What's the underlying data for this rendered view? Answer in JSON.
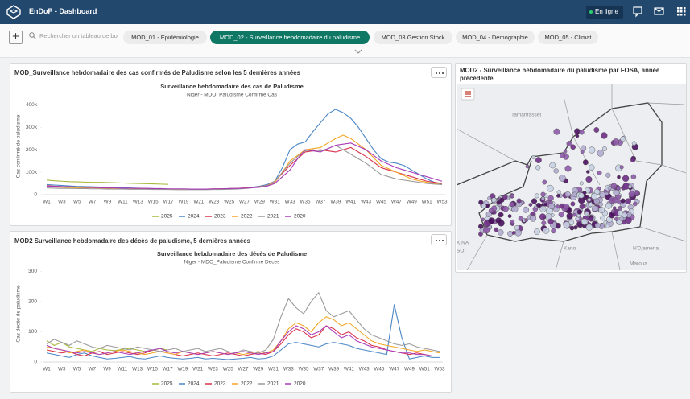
{
  "header": {
    "title": "EnDoP - Dashboard",
    "status": "En ligne"
  },
  "search": {
    "placeholder": "Rechercher un tableau de bo"
  },
  "tabs": [
    "MOD_01 - Epidémiologie",
    "MOD_02 - Surveillance hebdomadaire du paludisme",
    "MOD_03 Gestion Stock",
    "MOD_04 - Démographie",
    "MOD_05 - Climat"
  ],
  "panels": [
    "MOD_Surveillance hebdomadaire des cas confirmés de Paludisme selon les 5 dernières années",
    "MOD2 Surveillance hebdomadaire des décès de paludisme, 5 dernières années",
    "MOD2 - Surveillance hebdomadaire du paludisme par FOSA, année précédente"
  ],
  "map": {
    "labels": [
      "Tamanrasset",
      "Kano",
      "N'Djamena",
      "Maroua",
      "KINA",
      "SO"
    ]
  },
  "chart_data": [
    {
      "type": "line",
      "title": "Surveillance hebdomadaire des cas de Paludisme",
      "subtitle": "Niger - MDO_Paludisme Confirme Cas",
      "y_label": "Cas confirmé de paludisme",
      "categories": [
        "W1",
        null,
        "W3",
        null,
        "W5",
        null,
        "W7",
        null,
        "W9",
        null,
        "W11",
        null,
        "W13",
        null,
        "W15",
        null,
        "W17",
        null,
        "W19",
        null,
        "W21",
        null,
        "W23",
        null,
        "W25",
        null,
        "W27",
        null,
        "W29",
        null,
        "W31",
        null,
        "W33",
        null,
        "W35",
        null,
        "W37",
        null,
        "W39",
        null,
        "W41",
        null,
        "W43",
        null,
        "W45",
        null,
        "W47",
        null,
        "W49",
        null,
        "W51",
        null,
        "W53"
      ],
      "ylim": [
        0,
        430000
      ],
      "yticks": [
        0,
        {
          "value": 100000,
          "label": "100k"
        },
        {
          "value": 200000,
          "label": "200k"
        },
        {
          "value": 300000,
          "label": "300k"
        },
        {
          "value": 400000,
          "label": "400k"
        }
      ],
      "grid": false,
      "series": [
        {
          "name": "2025",
          "color": "#a9b83a",
          "values": [
            65000,
            62000,
            60000,
            58000,
            57000,
            56000,
            55000,
            55000,
            54000,
            53000,
            52000,
            51000,
            50000,
            49000,
            48000,
            47000,
            46000,
            null,
            null,
            null,
            null,
            null,
            null,
            null,
            null,
            null,
            null,
            null,
            null,
            null,
            null,
            null,
            null,
            null,
            null,
            null,
            null,
            null,
            null,
            null,
            null,
            null,
            null,
            null,
            null,
            null,
            null,
            null,
            null,
            null,
            null,
            null,
            null
          ]
        },
        {
          "name": "2024",
          "color": "#4a86c5",
          "values": [
            45000,
            43000,
            41000,
            39000,
            37000,
            36000,
            35000,
            34000,
            33000,
            32000,
            31000,
            30000,
            29000,
            28000,
            27000,
            26000,
            25000,
            25000,
            24000,
            24000,
            24000,
            25000,
            25000,
            26000,
            27000,
            28000,
            30000,
            33000,
            38000,
            45000,
            60000,
            120000,
            200000,
            225000,
            235000,
            280000,
            320000,
            360000,
            380000,
            365000,
            340000,
            300000,
            250000,
            200000,
            160000,
            145000,
            140000,
            130000,
            110000,
            90000,
            70000,
            55000,
            45000
          ]
        },
        {
          "name": "2023",
          "color": "#d9304a",
          "values": [
            40000,
            38000,
            36000,
            35000,
            34000,
            33000,
            32000,
            31000,
            30000,
            29000,
            28000,
            28000,
            27000,
            27000,
            26000,
            26000,
            25000,
            25000,
            25000,
            25000,
            25000,
            25000,
            26000,
            26000,
            27000,
            28000,
            30000,
            32000,
            36000,
            42000,
            60000,
            95000,
            130000,
            160000,
            190000,
            195000,
            200000,
            195000,
            190000,
            200000,
            210000,
            190000,
            170000,
            145000,
            120000,
            110000,
            100000,
            90000,
            80000,
            70000,
            60000,
            55000,
            50000
          ]
        },
        {
          "name": "2022",
          "color": "#f5a623",
          "values": [
            35000,
            34000,
            33000,
            32000,
            31000,
            30000,
            30000,
            29000,
            29000,
            28000,
            28000,
            27000,
            27000,
            26000,
            26000,
            25000,
            25000,
            25000,
            24000,
            24000,
            24000,
            24000,
            25000,
            25000,
            26000,
            27000,
            29000,
            31000,
            34000,
            40000,
            55000,
            100000,
            150000,
            175000,
            200000,
            205000,
            210000,
            230000,
            250000,
            265000,
            250000,
            225000,
            200000,
            165000,
            130000,
            115000,
            100000,
            85000,
            70000,
            62000,
            55000,
            50000,
            45000
          ]
        },
        {
          "name": "2021",
          "color": "#9a9a9a",
          "values": [
            30000,
            29000,
            28000,
            28000,
            27000,
            27000,
            26000,
            26000,
            25000,
            25000,
            25000,
            24000,
            24000,
            24000,
            23000,
            23000,
            23000,
            22000,
            22000,
            22000,
            22000,
            22000,
            23000,
            23000,
            24000,
            25000,
            27000,
            30000,
            35000,
            42000,
            60000,
            100000,
            140000,
            170000,
            195000,
            200000,
            195000,
            205000,
            220000,
            200000,
            180000,
            160000,
            140000,
            115000,
            90000,
            80000,
            70000,
            65000,
            60000,
            55000,
            50000,
            47000,
            45000
          ]
        },
        {
          "name": "2020",
          "color": "#a93bb8",
          "values": [
            38000,
            37000,
            36000,
            35000,
            34000,
            33000,
            32000,
            31000,
            30000,
            30000,
            29000,
            29000,
            28000,
            28000,
            27000,
            27000,
            26000,
            26000,
            26000,
            25000,
            25000,
            25000,
            26000,
            26000,
            27000,
            28000,
            29000,
            31000,
            33000,
            38000,
            50000,
            80000,
            110000,
            160000,
            200000,
            195000,
            190000,
            205000,
            220000,
            225000,
            230000,
            215000,
            200000,
            175000,
            150000,
            135000,
            120000,
            110000,
            100000,
            90000,
            80000,
            70000,
            60000
          ]
        }
      ]
    },
    {
      "type": "line",
      "title": "Surveillance hebdomadaire des décès de Paludisme",
      "subtitle": "Niger - MDO_Paludisme Confirme Deces",
      "y_label": "Cas décès de paludisme",
      "categories": [
        "W1",
        null,
        "W3",
        null,
        "W5",
        null,
        "W7",
        null,
        "W9",
        null,
        "W11",
        null,
        "W13",
        null,
        "W15",
        null,
        "W17",
        null,
        "W19",
        null,
        "W21",
        null,
        "W23",
        null,
        "W25",
        null,
        "W27",
        null,
        "W29",
        null,
        "W31",
        null,
        "W33",
        null,
        "W35",
        null,
        "W37",
        null,
        "W39",
        null,
        "W41",
        null,
        "W43",
        null,
        "W45",
        null,
        "W47",
        null,
        "W49",
        null,
        "W51",
        null,
        "W53"
      ],
      "ylim": [
        0,
        320
      ],
      "yticks": [
        0,
        100,
        200,
        300
      ],
      "grid": false,
      "series": [
        {
          "name": "2025",
          "color": "#a9b83a",
          "values": [
            70,
            55,
            65,
            50,
            45,
            40,
            35,
            45,
            40,
            38,
            42,
            45,
            40,
            35,
            38,
            45,
            40,
            null,
            null,
            null,
            null,
            null,
            null,
            null,
            null,
            null,
            null,
            null,
            null,
            null,
            null,
            null,
            null,
            null,
            null,
            null,
            null,
            null,
            null,
            null,
            null,
            null,
            null,
            null,
            null,
            null,
            null,
            null,
            null,
            null,
            null,
            null,
            null
          ]
        },
        {
          "name": "2024",
          "color": "#4a86c5",
          "values": [
            30,
            25,
            20,
            15,
            25,
            30,
            20,
            15,
            10,
            12,
            15,
            18,
            12,
            10,
            15,
            20,
            15,
            12,
            10,
            12,
            15,
            10,
            12,
            10,
            8,
            10,
            12,
            15,
            10,
            12,
            20,
            40,
            60,
            65,
            60,
            55,
            50,
            60,
            65,
            60,
            55,
            45,
            40,
            35,
            30,
            25,
            190,
            80,
            10,
            15,
            20,
            15,
            15
          ]
        },
        {
          "name": "2023",
          "color": "#d9304a",
          "values": [
            40,
            35,
            30,
            35,
            25,
            20,
            30,
            35,
            25,
            30,
            35,
            30,
            25,
            30,
            40,
            35,
            30,
            25,
            20,
            25,
            30,
            25,
            20,
            25,
            30,
            25,
            20,
            25,
            30,
            25,
            35,
            60,
            90,
            110,
            100,
            80,
            90,
            120,
            110,
            90,
            100,
            80,
            70,
            55,
            50,
            40,
            35,
            30,
            25,
            30,
            25,
            20,
            20
          ]
        },
        {
          "name": "2022",
          "color": "#f5a623",
          "values": [
            50,
            45,
            40,
            30,
            35,
            40,
            30,
            25,
            30,
            35,
            40,
            35,
            30,
            25,
            30,
            35,
            30,
            25,
            35,
            30,
            25,
            30,
            35,
            30,
            25,
            30,
            25,
            30,
            35,
            30,
            40,
            70,
            110,
            130,
            120,
            100,
            130,
            150,
            140,
            120,
            130,
            110,
            90,
            70,
            60,
            55,
            50,
            45,
            40,
            35,
            40,
            35,
            30
          ]
        },
        {
          "name": "2021",
          "color": "#9a9a9a",
          "values": [
            60,
            75,
            65,
            55,
            70,
            60,
            50,
            45,
            55,
            50,
            45,
            40,
            50,
            45,
            40,
            35,
            40,
            45,
            35,
            40,
            45,
            35,
            40,
            45,
            35,
            30,
            40,
            35,
            30,
            40,
            75,
            150,
            210,
            180,
            160,
            200,
            230,
            170,
            150,
            160,
            170,
            140,
            110,
            90,
            80,
            70,
            60,
            55,
            60,
            50,
            45,
            40,
            35
          ]
        },
        {
          "name": "2020",
          "color": "#a93bb8",
          "values": [
            55,
            45,
            40,
            35,
            30,
            35,
            30,
            25,
            30,
            35,
            30,
            25,
            30,
            35,
            40,
            45,
            35,
            30,
            35,
            30,
            25,
            30,
            35,
            30,
            25,
            30,
            35,
            30,
            25,
            30,
            35,
            70,
            100,
            120,
            110,
            90,
            100,
            120,
            100,
            80,
            90,
            70,
            60,
            50,
            45,
            40,
            35,
            30,
            30,
            25,
            25,
            20,
            20
          ]
        }
      ]
    }
  ]
}
